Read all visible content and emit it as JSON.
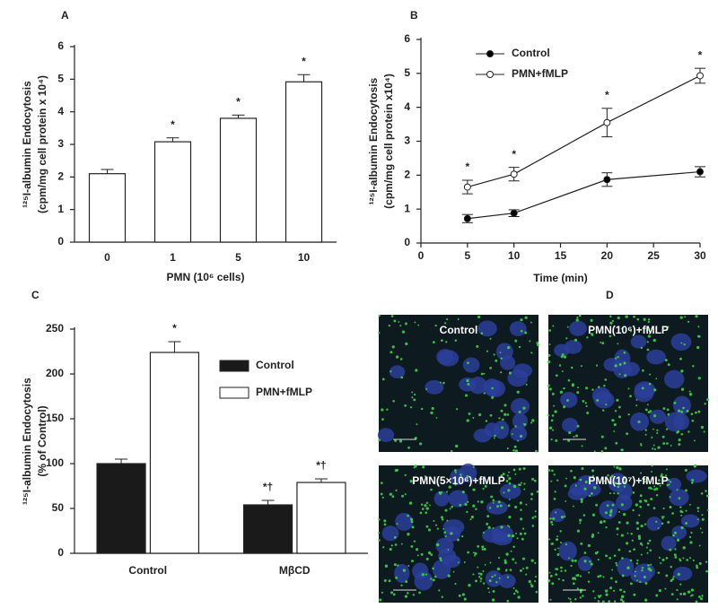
{
  "chart_data": [
    {
      "type": "bar",
      "panel": "A",
      "ylabel": [
        "¹²⁵I-albumin Endocytosis",
        "(cpm/mg cell protein x 10⁴)"
      ],
      "xlabel": "PMN (10⁶ cells)",
      "categories": [
        "0",
        "1",
        "5",
        "10"
      ],
      "series": [
        {
          "name": null,
          "color": "#ffffff",
          "values": [
            2.1,
            3.08,
            3.8,
            4.92
          ],
          "errors": [
            0.13,
            0.12,
            0.1,
            0.22
          ],
          "markers": [
            null,
            "*",
            "*",
            "*"
          ]
        }
      ],
      "ylim": [
        0,
        6
      ],
      "yticks": [
        0,
        1,
        2,
        3,
        4,
        5,
        6
      ]
    },
    {
      "type": "line",
      "panel": "B",
      "ylabel": [
        "¹²⁵I-albumin Endocytosis",
        "(cpm/mg cell protein x10⁴)"
      ],
      "xlabel": "Time (min)",
      "x": [
        5,
        10,
        20,
        30
      ],
      "series": [
        {
          "name": "Control",
          "color": "#000000",
          "values": [
            0.72,
            0.88,
            1.87,
            2.1
          ],
          "errors": [
            0.12,
            0.1,
            0.2,
            0.15
          ],
          "markers": [
            null,
            null,
            null,
            null
          ]
        },
        {
          "name": "PMN+fMLP",
          "color": "#ffffff",
          "values": [
            1.65,
            2.03,
            3.55,
            4.93
          ],
          "errors": [
            0.2,
            0.2,
            0.42,
            0.22
          ],
          "markers": [
            "*",
            "*",
            "*",
            "*"
          ]
        }
      ],
      "xlim": [
        0,
        30
      ],
      "xticks": [
        0,
        5,
        10,
        15,
        20,
        25,
        30
      ],
      "ylim": [
        0,
        6
      ],
      "yticks": [
        0,
        1,
        2,
        3,
        4,
        5,
        6
      ],
      "legend": "upper-left"
    },
    {
      "type": "bar",
      "panel": "C",
      "ylabel": [
        "¹²⁵I-albumin Endocytosis",
        "(% of Control)"
      ],
      "categories": [
        "Control",
        "MβCD"
      ],
      "series": [
        {
          "name": "Control",
          "color": "#1a1a1a",
          "values": [
            100,
            54
          ],
          "errors": [
            5,
            5
          ],
          "markers": [
            null,
            "*†"
          ]
        },
        {
          "name": "PMN+fMLP",
          "color": "#ffffff",
          "values": [
            224,
            79
          ],
          "errors": [
            12,
            4
          ],
          "markers": [
            "*",
            "*†"
          ]
        }
      ],
      "ylim": [
        0,
        250
      ],
      "yticks": [
        0,
        50,
        100,
        150,
        200,
        250
      ],
      "legend": "upper-center"
    }
  ],
  "panel_d": {
    "panel": "D",
    "images": [
      {
        "label": "Control"
      },
      {
        "label": "PMN(10⁶)+fMLP"
      },
      {
        "label": "PMN(5×10⁶)+fMLP"
      },
      {
        "label": "PMN(10⁷)+fMLP"
      }
    ]
  }
}
